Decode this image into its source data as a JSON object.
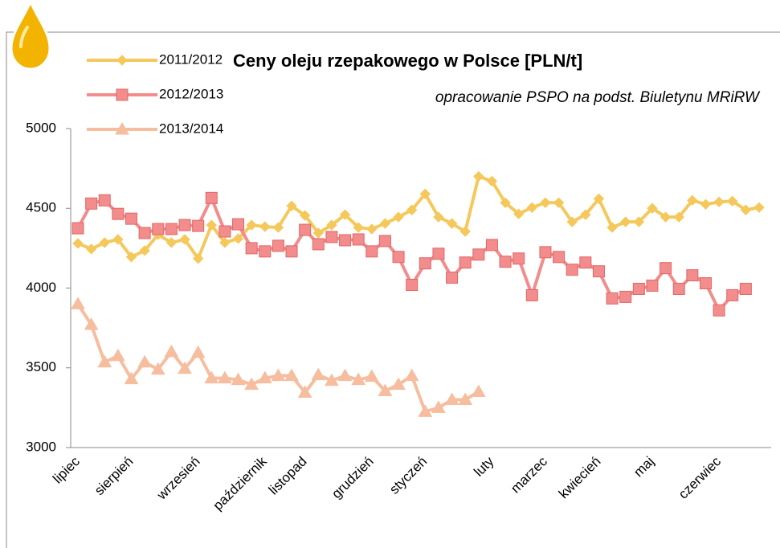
{
  "chart_data": {
    "type": "line",
    "title": "Ceny oleju rzepakowego w Polsce [PLN/t]",
    "subtitle": "opracowanie PSPO na podst. Biuletynu MRiRW",
    "categories": [
      "lipiec",
      null,
      null,
      null,
      "sierpień",
      null,
      null,
      null,
      null,
      "wrzesień",
      null,
      null,
      null,
      null,
      "październik",
      null,
      null,
      "listopad",
      null,
      null,
      null,
      null,
      "grudzień",
      null,
      null,
      null,
      "styczeń",
      null,
      null,
      null,
      null,
      "luty",
      null,
      null,
      null,
      "marzec",
      null,
      null,
      null,
      "kwiecień",
      null,
      null,
      null,
      "maj",
      null,
      null,
      null,
      null,
      "czerwiec",
      null,
      null,
      null
    ],
    "ylim": [
      3000,
      5000
    ],
    "yticks": [
      3000,
      3500,
      4000,
      4500,
      5000
    ],
    "grid": false,
    "legend": "top-left",
    "series": [
      {
        "name": "2011/2012",
        "color": "#f5c85c",
        "marker": "diamond",
        "values": [
          4280,
          4245,
          4285,
          4305,
          4195,
          4235,
          4335,
          4285,
          4305,
          4185,
          4395,
          4285,
          4310,
          4395,
          4385,
          4380,
          4515,
          4455,
          4345,
          4395,
          4460,
          4380,
          4370,
          4405,
          4445,
          4490,
          4590,
          4445,
          4405,
          4355,
          4700,
          4670,
          4535,
          4465,
          4505,
          4535,
          4535,
          4415,
          4460,
          4560,
          4380,
          4415,
          4415,
          4500,
          4445,
          4445,
          4550,
          4525,
          4540,
          4545,
          4490,
          4505
        ]
      },
      {
        "name": "2012/2013",
        "color": "#f38c8c",
        "marker": "square",
        "values": [
          4375,
          4530,
          4550,
          4465,
          4435,
          4345,
          4370,
          4370,
          4395,
          4390,
          4565,
          4355,
          4400,
          4250,
          4230,
          4265,
          4230,
          4365,
          4275,
          4320,
          4300,
          4305,
          4230,
          4295,
          4195,
          4020,
          4155,
          4215,
          4065,
          4160,
          4210,
          4270,
          4165,
          4185,
          3955,
          4225,
          4195,
          4115,
          4160,
          4105,
          3935,
          3945,
          3995,
          4015,
          4125,
          3995,
          4080,
          4030,
          3860,
          3955,
          3995,
          null
        ]
      },
      {
        "name": "2013/2014",
        "color": "#f6bd9e",
        "marker": "triangle",
        "values": [
          3900,
          3770,
          3535,
          3575,
          3430,
          3535,
          3490,
          3600,
          3495,
          3595,
          3435,
          3435,
          3425,
          3395,
          3435,
          3450,
          3450,
          3345,
          3455,
          3420,
          3450,
          3425,
          3445,
          3355,
          3395,
          3450,
          3225,
          3250,
          3300,
          3300,
          3350,
          null,
          null,
          null,
          null,
          null,
          null,
          null,
          null,
          null,
          null,
          null,
          null,
          null,
          null,
          null,
          null,
          null,
          null,
          null,
          null,
          null
        ]
      }
    ]
  }
}
